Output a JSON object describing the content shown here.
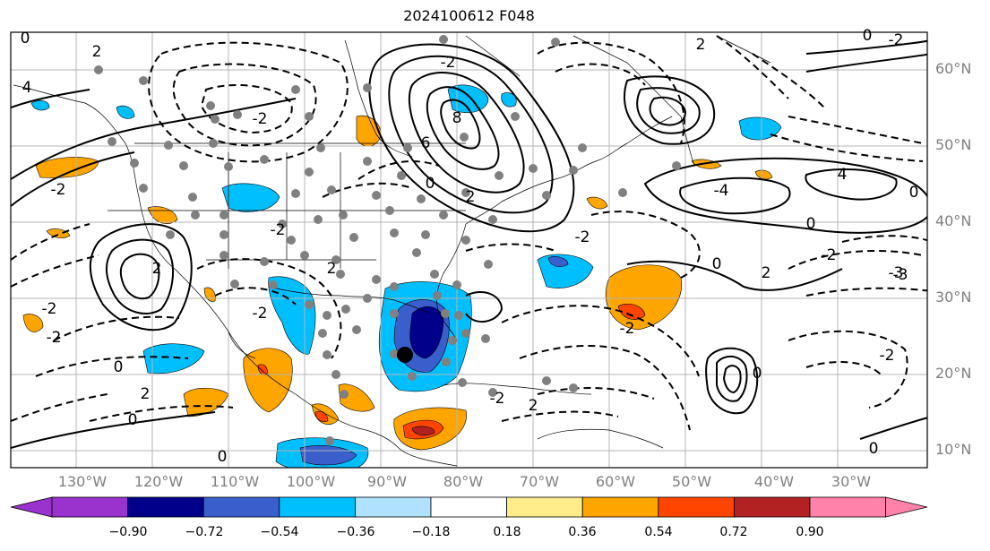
{
  "title": "2024100612 F048",
  "lat_labels": [
    "60°N",
    "50°N",
    "40°N",
    "30°N",
    "20°N",
    "10°N"
  ],
  "lon_labels": [
    "130°W",
    "120°W",
    "110°W",
    "100°W",
    "90°W",
    "80°W",
    "70°W",
    "60°W",
    "50°W",
    "40°W",
    "30°W"
  ],
  "colorbar": {
    "ticks": [
      "−0.90",
      "−0.72",
      "−0.54",
      "−0.36",
      "−0.18",
      "0.18",
      "0.36",
      "0.54",
      "0.72",
      "0.90"
    ],
    "colors": [
      "#9a32cd",
      "#00008b",
      "#3a5fcd",
      "#00bfff",
      "#b0e2ff",
      "#ffffff",
      "#ffec8b",
      "#ffa500",
      "#ff4500",
      "#b22222",
      "#ff82ab"
    ]
  },
  "contour_labels": [
    "0",
    "2",
    "4",
    "6",
    "8",
    "-2",
    "-4",
    "-3",
    "2",
    "0",
    "4",
    "-2",
    "2",
    "0",
    "-2",
    "-2",
    "0",
    "2",
    "-2",
    "0",
    "2",
    "-2",
    "0",
    "-2",
    "-2",
    "0",
    "2",
    "-3",
    "0",
    "-2",
    "2",
    "0",
    "2",
    "-2",
    "0",
    "-2",
    "0",
    "-2",
    "-2"
  ]
}
